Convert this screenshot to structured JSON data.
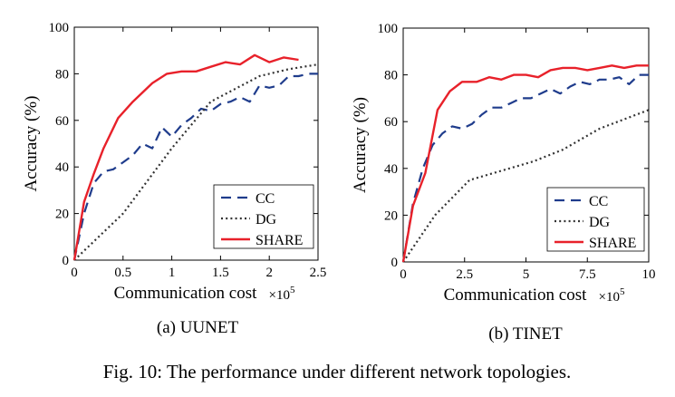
{
  "caption": "Fig. 10: The performance under different network topologies.",
  "chart_data": [
    {
      "type": "line",
      "subcaption": "(a) UUNET",
      "xlabel": "Communication cost",
      "x_multiplier": "×10",
      "x_multiplier_exp": "5",
      "ylabel": "Accuracy (%)",
      "xlim": [
        0,
        2.5
      ],
      "ylim": [
        0,
        100
      ],
      "xticks": [
        0,
        0.5,
        1,
        1.5,
        2,
        2.5
      ],
      "xtick_labels": [
        "0",
        "0.5",
        "1",
        "1.5",
        "2",
        "2.5"
      ],
      "yticks": [
        0,
        20,
        40,
        60,
        80,
        100
      ],
      "ytick_labels": [
        "0",
        "20",
        "40",
        "60",
        "80",
        "100"
      ],
      "legend_position": "bottom-right",
      "series": [
        {
          "name": "CC",
          "color": "#1f3c8c",
          "style": "dashed",
          "x": [
            0,
            0.1,
            0.2,
            0.3,
            0.4,
            0.5,
            0.6,
            0.7,
            0.8,
            0.9,
            1.0,
            1.1,
            1.2,
            1.3,
            1.4,
            1.5,
            1.6,
            1.7,
            1.8,
            1.9,
            2.0,
            2.1,
            2.2,
            2.3,
            2.4,
            2.5
          ],
          "y": [
            0,
            20,
            33,
            38,
            39,
            42,
            45,
            50,
            48,
            57,
            53,
            58,
            61,
            65,
            64,
            67,
            68,
            70,
            68,
            75,
            74,
            75,
            79,
            79,
            80,
            80
          ]
        },
        {
          "name": "DG",
          "color": "#333333",
          "style": "dotted",
          "x": [
            0,
            0.5,
            1.0,
            1.4,
            1.9,
            2.2,
            2.5
          ],
          "y": [
            0,
            20,
            48,
            68,
            79,
            82,
            84
          ]
        },
        {
          "name": "SHARE",
          "color": "#e8212a",
          "style": "solid",
          "x": [
            0,
            0.1,
            0.2,
            0.3,
            0.45,
            0.6,
            0.8,
            0.95,
            1.1,
            1.25,
            1.4,
            1.55,
            1.7,
            1.85,
            2.0,
            2.15,
            2.3
          ],
          "y": [
            0,
            25,
            37,
            48,
            61,
            68,
            76,
            80,
            81,
            81,
            83,
            85,
            84,
            88,
            85,
            87,
            86
          ]
        }
      ]
    },
    {
      "type": "line",
      "subcaption": "(b) TINET",
      "xlabel": "Communication cost",
      "x_multiplier": "×10",
      "x_multiplier_exp": "5",
      "ylabel": "Accuracy (%)",
      "xlim": [
        0,
        10
      ],
      "ylim": [
        0,
        100
      ],
      "xticks": [
        0,
        2.5,
        5,
        7.5,
        10
      ],
      "xtick_labels": [
        "0",
        "2.5",
        "5",
        "7.5",
        "10"
      ],
      "yticks": [
        0,
        20,
        40,
        60,
        80,
        100
      ],
      "ytick_labels": [
        "0",
        "20",
        "40",
        "60",
        "80",
        "100"
      ],
      "legend_position": "bottom-right",
      "series": [
        {
          "name": "CC",
          "color": "#1f3c8c",
          "style": "dashed",
          "x": [
            0,
            0.4,
            0.8,
            1.2,
            1.6,
            2.0,
            2.4,
            2.8,
            3.2,
            3.6,
            4.0,
            4.4,
            4.8,
            5.2,
            5.6,
            6.0,
            6.4,
            6.8,
            7.2,
            7.6,
            8.0,
            8.4,
            8.8,
            9.2,
            9.6,
            10
          ],
          "y": [
            0,
            25,
            40,
            50,
            55,
            58,
            57,
            59,
            63,
            66,
            66,
            68,
            70,
            70,
            72,
            74,
            72,
            75,
            77,
            76,
            78,
            78,
            79,
            76,
            80,
            80
          ]
        },
        {
          "name": "DG",
          "color": "#333333",
          "style": "dotted",
          "x": [
            0,
            1.3,
            2.7,
            4.0,
            5.3,
            6.5,
            8.0,
            9.0,
            10
          ],
          "y": [
            0,
            20,
            35,
            39,
            43,
            48,
            57,
            61,
            65
          ]
        },
        {
          "name": "SHARE",
          "color": "#e8212a",
          "style": "solid",
          "x": [
            0,
            0.4,
            0.9,
            1.4,
            1.9,
            2.4,
            3.0,
            3.5,
            4.0,
            4.5,
            5.0,
            5.5,
            6.0,
            6.5,
            7.0,
            7.5,
            8.0,
            8.5,
            9.0,
            9.5,
            10
          ],
          "y": [
            0,
            24,
            38,
            65,
            73,
            77,
            77,
            79,
            78,
            80,
            80,
            79,
            82,
            83,
            83,
            82,
            83,
            84,
            83,
            84,
            84
          ]
        }
      ]
    }
  ]
}
